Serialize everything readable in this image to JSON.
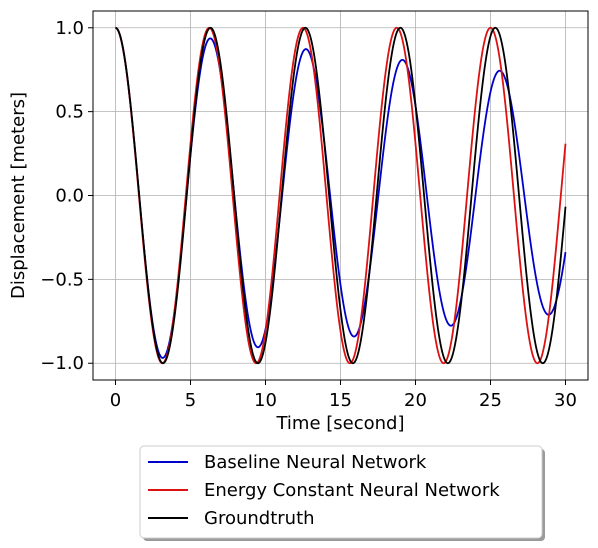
{
  "chart_data": {
    "type": "line",
    "title": "",
    "xlabel": "Time [second]",
    "ylabel": "Displacement [meters]",
    "xlim": [
      -1.5,
      31.5
    ],
    "ylim": [
      -1.1,
      1.1
    ],
    "xticks": [
      0,
      5,
      10,
      15,
      20,
      25,
      30
    ],
    "xtick_labels": [
      "0",
      "5",
      "10",
      "15",
      "20",
      "25",
      "30"
    ],
    "yticks": [
      -1.0,
      -0.5,
      0.0,
      0.5,
      1.0
    ],
    "ytick_labels": [
      "−1.0",
      "−0.5",
      "0.0",
      "0.5",
      "1.0"
    ],
    "grid": true,
    "legend_position": "bottom-outside",
    "series": [
      {
        "name": "Baseline Neural Network",
        "color": "#0000cc",
        "model": {
          "amp_start": 1.0,
          "amp_end": 0.7,
          "period_start": 6.3,
          "period_end": 6.55
        },
        "key_points": [
          [
            0,
            1.0
          ],
          [
            3.2,
            -1.0
          ],
          [
            6.4,
            0.91
          ],
          [
            9.6,
            -0.93
          ],
          [
            12.9,
            0.83
          ],
          [
            16.1,
            -0.85
          ],
          [
            19.3,
            0.75
          ],
          [
            22.5,
            -0.78
          ],
          [
            25.8,
            0.68
          ],
          [
            28.9,
            -0.72
          ],
          [
            30,
            -0.36
          ]
        ]
      },
      {
        "name": "Energy Constant Neural Network",
        "color": "#dd1111",
        "model": {
          "amp_start": 1.0,
          "amp_end": 1.0,
          "period": 6.25
        },
        "key_points": [
          [
            0,
            1.0
          ],
          [
            3.1,
            -1.0
          ],
          [
            6.25,
            1.0
          ],
          [
            9.4,
            -1.0
          ],
          [
            12.5,
            1.0
          ],
          [
            15.6,
            -1.0
          ],
          [
            18.75,
            1.0
          ],
          [
            21.9,
            -1.0
          ],
          [
            25.0,
            1.0
          ],
          [
            28.1,
            -1.0
          ],
          [
            30,
            0.41
          ]
        ]
      },
      {
        "name": "Groundtruth",
        "color": "#000000",
        "model": {
          "amp_start": 1.0,
          "amp_end": 1.0,
          "period": 6.33
        },
        "key_points": [
          [
            0,
            1.0
          ],
          [
            3.17,
            -1.0
          ],
          [
            6.33,
            1.0
          ],
          [
            9.5,
            -1.0
          ],
          [
            12.66,
            1.0
          ],
          [
            15.83,
            -1.0
          ],
          [
            19.0,
            1.0
          ],
          [
            22.15,
            -1.0
          ],
          [
            25.3,
            1.0
          ],
          [
            28.5,
            -1.0
          ],
          [
            30,
            0.16
          ]
        ]
      }
    ]
  }
}
